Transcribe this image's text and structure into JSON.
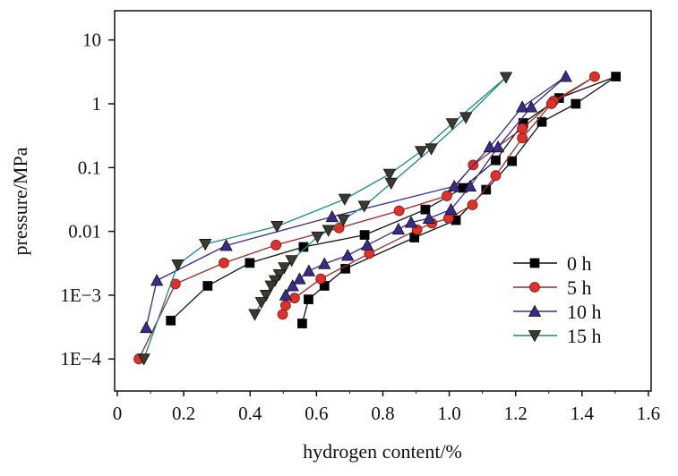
{
  "chart_data": {
    "type": "line",
    "title": "",
    "xlabel": "hydrogen content/%",
    "ylabel": "pressure/MPa",
    "xlim": [
      0,
      1.6
    ],
    "ylim": [
      0.0001,
      10
    ],
    "yscale": "log",
    "xticks": [
      {
        "value": 0,
        "label": "0"
      },
      {
        "value": 0.2,
        "label": "0.2"
      },
      {
        "value": 0.4,
        "label": "0.4"
      },
      {
        "value": 0.6,
        "label": "0.6"
      },
      {
        "value": 0.8,
        "label": "0.8"
      },
      {
        "value": 1.0,
        "label": "1.0"
      },
      {
        "value": 1.2,
        "label": "1.2"
      },
      {
        "value": 1.4,
        "label": "1.4"
      },
      {
        "value": 1.6,
        "label": "1.6"
      }
    ],
    "yticks": [
      {
        "value": 10,
        "label": "10"
      },
      {
        "value": 1,
        "label": "1"
      },
      {
        "value": 0.1,
        "label": "0.1"
      },
      {
        "value": 0.01,
        "label": "0.01"
      },
      {
        "value": 0.001,
        "label": "1E−3"
      },
      {
        "value": 0.0001,
        "label": "1E−4"
      }
    ],
    "grid": false,
    "legend_position": "right-middle",
    "series": [
      {
        "name": "0 h",
        "marker": "square",
        "fill": "#000000",
        "line": "#111111",
        "x": [
          0.161,
          0.272,
          0.399,
          0.561,
          0.745,
          0.928,
          1.041,
          1.14,
          1.223,
          1.331,
          1.502,
          1.381,
          1.279,
          1.189,
          1.111,
          1.02,
          0.895,
          0.687,
          0.624,
          0.576,
          0.557
        ],
        "y": [
          0.0004,
          0.0014,
          0.0032,
          0.0057,
          0.0088,
          0.022,
          0.048,
          0.13,
          0.5,
          1.23,
          2.67,
          1.0,
          0.52,
          0.126,
          0.045,
          0.015,
          0.008,
          0.0026,
          0.0014,
          0.00086,
          0.00036
        ]
      },
      {
        "name": "5 h",
        "marker": "circle",
        "fill": "#e0302a",
        "line": "#9a2a2a",
        "x": [
          0.065,
          0.175,
          0.321,
          0.478,
          0.668,
          0.849,
          0.993,
          1.072,
          1.22,
          1.314,
          1.438,
          1.308,
          1.22,
          1.14,
          1.07,
          0.998,
          0.948,
          0.903,
          0.759,
          0.613,
          0.534,
          0.507,
          0.498
        ],
        "y": [
          0.0001,
          0.0015,
          0.0032,
          0.0061,
          0.0113,
          0.021,
          0.036,
          0.11,
          0.41,
          1.1,
          2.67,
          1.0,
          0.29,
          0.075,
          0.026,
          0.016,
          0.0134,
          0.0106,
          0.0045,
          0.0018,
          0.0009,
          0.00069,
          0.0005
        ]
      },
      {
        "name": "10 h",
        "marker": "triangle-up",
        "fill": "#3a2a8c",
        "line": "#3a2a8c",
        "x": [
          0.087,
          0.119,
          0.328,
          0.647,
          1.015,
          1.122,
          1.22,
          1.351,
          1.247,
          1.147,
          1.063,
          1.005,
          0.939,
          0.885,
          0.847,
          0.753,
          0.694,
          0.624,
          0.577,
          0.549,
          0.528,
          0.507
        ],
        "y": [
          0.00031,
          0.0017,
          0.006,
          0.017,
          0.051,
          0.21,
          0.89,
          2.67,
          0.89,
          0.21,
          0.051,
          0.022,
          0.016,
          0.0138,
          0.0108,
          0.0061,
          0.0042,
          0.0031,
          0.0024,
          0.0018,
          0.0014,
          0.001
        ]
      },
      {
        "name": "15 h",
        "marker": "triangle-down",
        "fill": "#3a3a2e",
        "line": "#1a8a7c",
        "x": [
          0.08,
          0.182,
          0.265,
          0.481,
          0.685,
          0.82,
          0.915,
          1.009,
          1.171,
          1.05,
          0.946,
          0.825,
          0.744,
          0.681,
          0.636,
          0.603,
          0.525,
          0.503,
          0.488,
          0.475,
          0.463,
          0.448,
          0.434,
          0.414
        ],
        "y": [
          0.0001,
          0.003,
          0.0063,
          0.012,
          0.032,
          0.079,
          0.18,
          0.49,
          2.6,
          0.61,
          0.197,
          0.057,
          0.025,
          0.0152,
          0.0104,
          0.0082,
          0.0035,
          0.0027,
          0.0021,
          0.0017,
          0.0014,
          0.001,
          0.00077,
          0.0005
        ]
      }
    ]
  }
}
